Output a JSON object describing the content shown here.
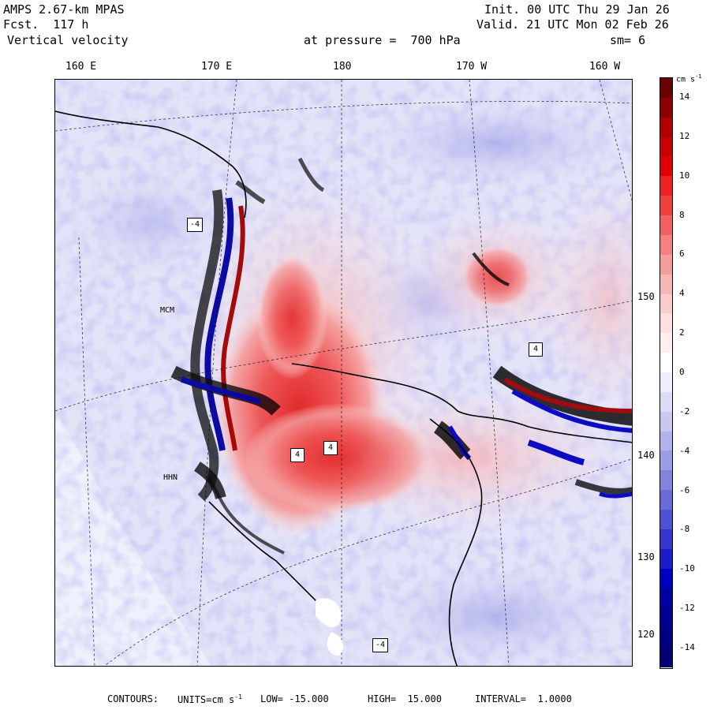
{
  "header": {
    "model": "AMPS 2.67-km MPAS",
    "forecast": "Fcst.  117 h",
    "field": "Vertical velocity",
    "init": "Init. 00 UTC Thu 29 Jan 26",
    "valid": "Valid. 21 UTC Mon 02 Feb 26",
    "pressure": "at pressure =  700 hPa",
    "smoothing": "sm= 6"
  },
  "map": {
    "longitude_labels": [
      "160 E",
      "170 E",
      "180",
      "170 W",
      "160 W"
    ],
    "latitude_labels": [
      "150 W",
      "140 W",
      "130 W",
      "120 W"
    ],
    "stations": [
      "MCM",
      "HHN"
    ],
    "contour_box_labels": [
      "-4",
      "4"
    ]
  },
  "colorbar": {
    "unit": "cm s",
    "unit_exp": "-1",
    "ticks": [
      "14",
      "12",
      "10",
      "8",
      "6",
      "4",
      "2",
      "0",
      "-2",
      "-4",
      "-6",
      "-8",
      "-10",
      "-12",
      "-14"
    ],
    "colors": [
      "#6b0000",
      "#8c0000",
      "#b00000",
      "#c80000",
      "#e00000",
      "#ee2020",
      "#f04040",
      "#f26060",
      "#f48080",
      "#f59c9c",
      "#f7b6b6",
      "#facccc",
      "#fddfdf",
      "#ffeeee",
      "#ffffff",
      "#eeeefc",
      "#dcdcf8",
      "#c8c8f2",
      "#b2b2ec",
      "#9c9ce6",
      "#8484de",
      "#6a6ad8",
      "#5050d2",
      "#3535cc",
      "#1c1cc8",
      "#0000c0",
      "#0000a0",
      "#000090",
      "#000080",
      "#000070"
    ]
  },
  "footer": {
    "contours": "CONTOURS:",
    "units": "UNITS=cm s",
    "units_exp": "-1",
    "low": "LOW= -15.000",
    "high": "HIGH=  15.000",
    "interval": "INTERVAL=  1.0000"
  }
}
